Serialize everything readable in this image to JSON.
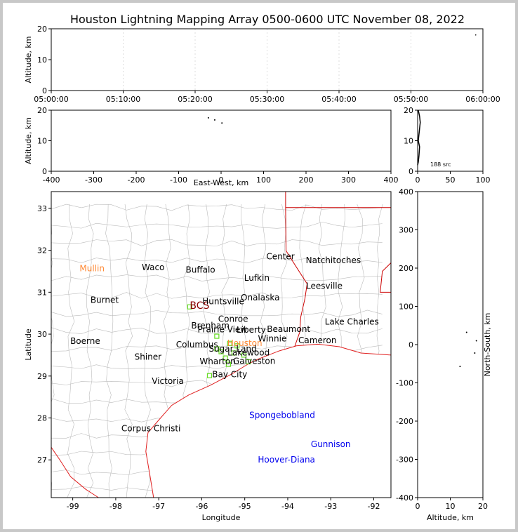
{
  "title": "Houston Lightning Mapping Array 0500-0600 UTC November 08, 2022",
  "colors": {
    "border": "#cc0000",
    "coast": "#e02020",
    "counties": "#bbbbbb",
    "station": "#66dd22",
    "grid": "#dddddd",
    "black": "#000000",
    "orange": "#ff8833",
    "darkred": "#8b0000",
    "blue": "#0000ee"
  },
  "chart_data": [
    {
      "id": "time_height",
      "type": "scatter",
      "xlabel": "",
      "ylabel": "Altitude, km",
      "xticks": [
        "05:00:00",
        "05:10:00",
        "05:20:00",
        "05:30:00",
        "05:40:00",
        "05:50:00",
        "06:00:00"
      ],
      "xlim_minutes": [
        0,
        60
      ],
      "ylim": [
        0,
        20
      ],
      "yticks": [
        0,
        10,
        20
      ],
      "points": [
        {
          "x": 59.0,
          "y": 18.0
        }
      ]
    },
    {
      "id": "ew_height",
      "type": "scatter",
      "xlabel": "East-West, km",
      "ylabel": "Altitude, km",
      "xlim": [
        -400,
        400
      ],
      "xticks": [
        -400,
        -300,
        -200,
        -100,
        0,
        100,
        200,
        300,
        400
      ],
      "ylim": [
        0,
        20
      ],
      "yticks": [
        0,
        10,
        20
      ],
      "points": [
        {
          "x": -30,
          "y": 17.5
        },
        {
          "x": -15,
          "y": 16.8
        },
        {
          "x": 2,
          "y": 15.8
        }
      ]
    },
    {
      "id": "alt_histogram",
      "type": "line",
      "xlabel": "",
      "ylabel": "",
      "xlim": [
        0,
        100
      ],
      "xticks": [
        0,
        50,
        100
      ],
      "ylim": [
        0,
        20
      ],
      "yticks": [
        0,
        10,
        20
      ],
      "annotation": "188 src",
      "profile": [
        [
          0,
          2
        ],
        [
          1,
          3
        ],
        [
          2,
          5
        ],
        [
          3,
          8
        ],
        [
          1,
          10
        ],
        [
          2,
          12
        ],
        [
          3,
          14
        ],
        [
          4,
          16
        ],
        [
          3,
          18
        ],
        [
          2,
          19
        ],
        [
          1,
          20
        ]
      ]
    },
    {
      "id": "plan_view",
      "type": "scatter",
      "xlabel": "Longitude",
      "ylabel": "Latitude",
      "xlim": [
        -99.5,
        -91.6
      ],
      "ylim": [
        26.1,
        33.4
      ],
      "xticks": [
        -99,
        -98,
        -97,
        -96,
        -95,
        -94,
        -93,
        -92
      ],
      "yticks": [
        27,
        28,
        29,
        30,
        31,
        32,
        33
      ],
      "cities": [
        {
          "name": "Mullin",
          "lon": -98.55,
          "lat": 31.57,
          "color": "orange"
        },
        {
          "name": "Waco",
          "lon": -97.13,
          "lat": 31.59,
          "color": "black"
        },
        {
          "name": "Buffalo",
          "lon": -96.03,
          "lat": 31.53,
          "color": "black"
        },
        {
          "name": "Center",
          "lon": -94.17,
          "lat": 31.85,
          "color": "black"
        },
        {
          "name": "Natchitoches",
          "lon": -92.94,
          "lat": 31.76,
          "color": "black"
        },
        {
          "name": "Lufkin",
          "lon": -94.72,
          "lat": 31.34,
          "color": "black"
        },
        {
          "name": "Leesville",
          "lon": -93.15,
          "lat": 31.15,
          "color": "black"
        },
        {
          "name": "Burnet",
          "lon": -98.26,
          "lat": 30.81,
          "color": "black"
        },
        {
          "name": "BCS",
          "lon": -96.05,
          "lat": 30.67,
          "color": "darkred"
        },
        {
          "name": "Huntsville",
          "lon": -95.5,
          "lat": 30.78,
          "color": "black"
        },
        {
          "name": "Onalaska",
          "lon": -94.64,
          "lat": 30.87,
          "color": "black"
        },
        {
          "name": "Conroe",
          "lon": -95.27,
          "lat": 30.36,
          "color": "black"
        },
        {
          "name": "Lake Charles",
          "lon": -92.51,
          "lat": 30.29,
          "color": "black"
        },
        {
          "name": "Brenham",
          "lon": -95.8,
          "lat": 30.2,
          "color": "black"
        },
        {
          "name": "Prairie View",
          "lon": -95.52,
          "lat": 30.11,
          "color": "black"
        },
        {
          "name": "Liberty",
          "lon": -94.85,
          "lat": 30.1,
          "color": "black"
        },
        {
          "name": "Beaumont",
          "lon": -93.98,
          "lat": 30.12,
          "color": "black"
        },
        {
          "name": "Boerne",
          "lon": -98.71,
          "lat": 29.83,
          "color": "black"
        },
        {
          "name": "Winnie",
          "lon": -94.36,
          "lat": 29.89,
          "color": "black"
        },
        {
          "name": "Cameron",
          "lon": -93.31,
          "lat": 29.85,
          "color": "black"
        },
        {
          "name": "Columbus",
          "lon": -96.11,
          "lat": 29.75,
          "color": "black"
        },
        {
          "name": "Houston",
          "lon": -95.0,
          "lat": 29.78,
          "color": "orange"
        },
        {
          "name": "Sugar Land",
          "lon": -95.28,
          "lat": 29.65,
          "color": "black"
        },
        {
          "name": "Lakewood",
          "lon": -94.91,
          "lat": 29.56,
          "color": "black"
        },
        {
          "name": "Shiner",
          "lon": -97.25,
          "lat": 29.46,
          "color": "black"
        },
        {
          "name": "Wharton",
          "lon": -95.63,
          "lat": 29.35,
          "color": "black"
        },
        {
          "name": "Galveston",
          "lon": -94.78,
          "lat": 29.36,
          "color": "black"
        },
        {
          "name": "Bay City",
          "lon": -95.35,
          "lat": 29.04,
          "color": "black"
        },
        {
          "name": "Victoria",
          "lon": -96.79,
          "lat": 28.88,
          "color": "black"
        },
        {
          "name": "Spongebobland",
          "lon": -94.13,
          "lat": 28.07,
          "color": "blue"
        },
        {
          "name": "Corpus Christi",
          "lon": -97.18,
          "lat": 27.75,
          "color": "black"
        },
        {
          "name": "Gunnison",
          "lon": -93.0,
          "lat": 27.37,
          "color": "blue"
        },
        {
          "name": "Hoover-Diana",
          "lon": -94.03,
          "lat": 27.0,
          "color": "blue"
        }
      ],
      "stations": [
        [
          -96.28,
          30.65
        ],
        [
          -95.65,
          29.95
        ],
        [
          -95.65,
          29.65
        ],
        [
          -95.35,
          29.78
        ],
        [
          -95.18,
          29.72
        ],
        [
          -95.02,
          29.5
        ],
        [
          -94.92,
          29.34
        ],
        [
          -95.45,
          29.43
        ],
        [
          -95.38,
          29.28
        ],
        [
          -95.55,
          29.58
        ],
        [
          -95.82,
          29.01
        ],
        [
          -95.25,
          29.55
        ]
      ]
    },
    {
      "id": "ns_height",
      "type": "scatter",
      "xlabel": "Altitude, km",
      "ylabel": "North-South, km",
      "xlim": [
        0,
        20
      ],
      "xticks": [
        0,
        10,
        20
      ],
      "ylim": [
        -400,
        400
      ],
      "yticks": [
        -400,
        -300,
        -200,
        -100,
        0,
        100,
        200,
        300,
        400
      ],
      "points": [
        {
          "x": 15,
          "y": 32
        },
        {
          "x": 17.5,
          "y": -22
        },
        {
          "x": 13,
          "y": -57
        },
        {
          "x": 18,
          "y": 10
        }
      ]
    }
  ]
}
